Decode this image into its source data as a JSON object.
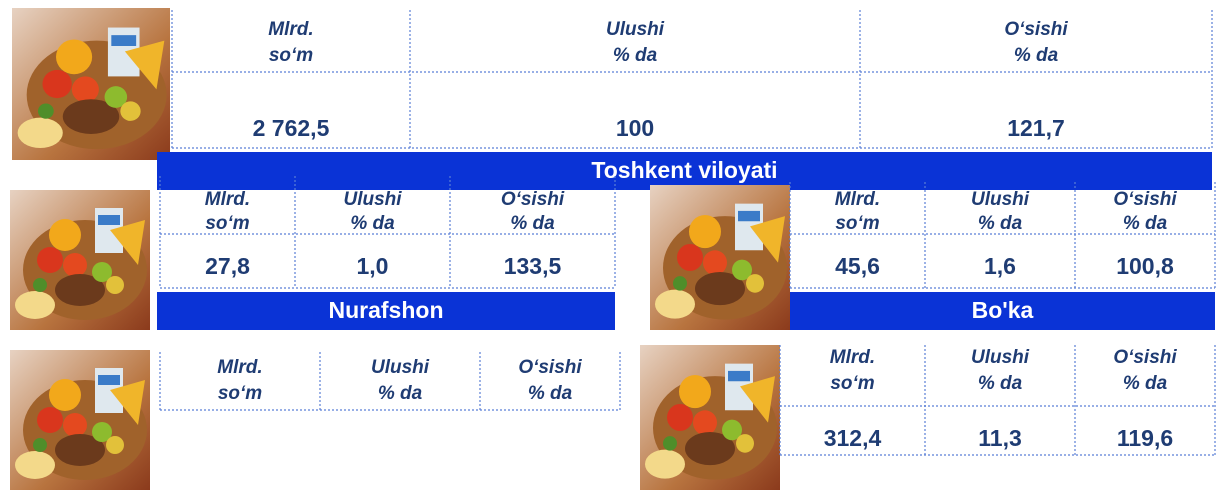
{
  "panels": [
    {
      "headers": [
        [
          "Mlrd.",
          "so‘m"
        ],
        [
          "Ulushi",
          "% da"
        ],
        [
          "O‘sishi",
          "% da"
        ]
      ],
      "values": [
        "2 762,5",
        "100",
        "121,7"
      ],
      "banner": "Toshkent viloyati"
    },
    {
      "headers": [
        [
          "Mlrd.",
          "so‘m"
        ],
        [
          "Ulushi",
          "% da"
        ],
        [
          "O‘sishi",
          "% da"
        ]
      ],
      "values": [
        "27,8",
        "1,0",
        "133,5"
      ],
      "banner": "Nurafshon"
    },
    {
      "headers": [
        [
          "Mlrd.",
          "so‘m"
        ],
        [
          "Ulushi",
          "% da"
        ],
        [
          "O‘sishi",
          "% da"
        ]
      ],
      "values": [
        "45,6",
        "1,6",
        "100,8"
      ],
      "banner": "Bo'ka"
    },
    {
      "headers": [
        [
          "Mlrd.",
          "so‘m"
        ],
        [
          "Ulushi",
          "% da"
        ],
        [
          "O‘sishi",
          "% da"
        ]
      ]
    },
    {
      "headers": [
        [
          "Mlrd.",
          "so‘m"
        ],
        [
          "Ulushi",
          "% da"
        ],
        [
          "O‘sishi",
          "% da"
        ]
      ],
      "values": [
        "312,4",
        "11,3",
        "119,6"
      ]
    }
  ]
}
